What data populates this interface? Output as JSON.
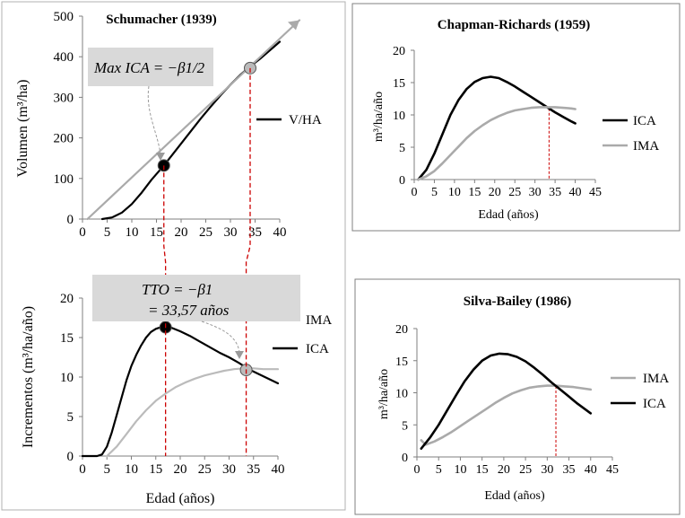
{
  "chart_data": [
    {
      "id": "schumacher_vol",
      "type": "line",
      "title": "Schumacher (1939)",
      "xlabel": "",
      "ylabel": "Volumen (m³/ha)",
      "xlim": [
        0,
        40
      ],
      "ylim": [
        0,
        500
      ],
      "xticks": [
        0,
        5,
        10,
        15,
        20,
        25,
        30,
        35,
        40
      ],
      "yticks": [
        0,
        100,
        200,
        300,
        400,
        500
      ],
      "legend": {
        "position": "right",
        "entries": [
          "V/HA"
        ]
      },
      "series": [
        {
          "name": "V/HA",
          "color": "#000000",
          "x": [
            4,
            6,
            8,
            10,
            12,
            14,
            16.5,
            18,
            20,
            22,
            24,
            26,
            28,
            30,
            32,
            34,
            36,
            38,
            40
          ],
          "y": [
            0,
            4,
            16,
            37,
            65,
            97,
            132,
            155,
            186,
            217,
            248,
            277,
            305,
            331,
            355,
            376,
            395,
            416,
            437
          ]
        },
        {
          "name": "",
          "color": "#aaaaaa",
          "x": [
            1,
            44
          ],
          "y": [
            0,
            490
          ]
        }
      ],
      "annotations": {
        "text": "Max ICA = −β1/2",
        "points": [
          {
            "x": 16.5,
            "y": 132,
            "fill": "#000000"
          },
          {
            "x": 34,
            "y": 372,
            "fill": "#bbbbbb"
          }
        ],
        "dashed_verticals": [
          16.5,
          34
        ]
      }
    },
    {
      "id": "schumacher_inc",
      "type": "line",
      "title": "",
      "xlabel": "Edad (años)",
      "ylabel": "Incrementos (m³/ha/año)",
      "xlim": [
        0,
        40
      ],
      "ylim": [
        0,
        20
      ],
      "xticks": [
        0,
        5,
        10,
        15,
        20,
        25,
        30,
        35,
        40
      ],
      "yticks": [
        0,
        5,
        10,
        15,
        20
      ],
      "legend": {
        "position": "right",
        "entries": [
          "IMA",
          "ICA"
        ]
      },
      "series": [
        {
          "name": "ICA",
          "color": "#000000",
          "x": [
            0,
            3,
            4,
            5,
            6,
            7,
            8,
            9,
            10,
            11,
            12,
            13,
            14,
            15,
            16,
            17,
            18,
            20,
            22,
            24,
            26,
            28,
            30,
            32,
            34,
            36,
            38,
            40
          ],
          "y": [
            0,
            0,
            0.2,
            1.2,
            3.0,
            5.2,
            7.4,
            9.6,
            11.4,
            12.8,
            14.0,
            15.0,
            15.7,
            16.1,
            16.3,
            16.4,
            16.3,
            15.8,
            15.2,
            14.5,
            13.8,
            13.1,
            12.5,
            11.8,
            11.0,
            10.4,
            9.8,
            9.2
          ]
        },
        {
          "name": "IMA",
          "color": "#bbbbbb",
          "x": [
            5,
            7,
            9,
            11,
            13,
            15,
            17,
            19,
            21,
            23,
            25,
            27,
            29,
            31,
            33,
            35,
            37,
            40
          ],
          "y": [
            0,
            1.2,
            2.8,
            4.4,
            5.8,
            7.0,
            7.9,
            8.7,
            9.3,
            9.8,
            10.2,
            10.5,
            10.8,
            11.0,
            11.1,
            11.1,
            11.0,
            11.0
          ]
        }
      ],
      "annotations": {
        "text_line1": "TTO = −β1",
        "text_line2": "= 33,57 años",
        "points": [
          {
            "x": 17,
            "y": 16.3,
            "fill": "#000000"
          },
          {
            "x": 33.5,
            "y": 10.9,
            "fill": "#bbbbbb"
          }
        ],
        "dashed_verticals": [
          17,
          33.5
        ]
      }
    },
    {
      "id": "chapman",
      "type": "line",
      "title": "Chapman-Richards (1959)",
      "xlabel": "Edad (años)",
      "ylabel": "m³/ha/año",
      "xlim": [
        0,
        45
      ],
      "ylim": [
        0,
        20
      ],
      "xticks": [
        0,
        5,
        10,
        15,
        20,
        25,
        30,
        35,
        40,
        45
      ],
      "yticks": [
        0,
        5,
        10,
        15,
        20
      ],
      "legend": {
        "position": "right",
        "entries": [
          "ICA",
          "IMA"
        ]
      },
      "series": [
        {
          "name": "ICA",
          "color": "#000000",
          "x": [
            1,
            3,
            5,
            7,
            9,
            11,
            13,
            15,
            17,
            19,
            21,
            23,
            25,
            27,
            29,
            31,
            33,
            35,
            37,
            39,
            40
          ],
          "y": [
            0,
            1.5,
            4.0,
            7.0,
            10.0,
            12.3,
            14.0,
            15.1,
            15.7,
            15.9,
            15.7,
            15.1,
            14.4,
            13.6,
            12.8,
            12.0,
            11.2,
            10.4,
            9.7,
            9.0,
            8.7
          ]
        },
        {
          "name": "IMA",
          "color": "#aaaaaa",
          "x": [
            1,
            3,
            5,
            7,
            9,
            11,
            13,
            15,
            17,
            19,
            21,
            23,
            25,
            27,
            29,
            31,
            33,
            35,
            37,
            39,
            40
          ],
          "y": [
            0,
            0.5,
            1.3,
            2.5,
            3.8,
            5.1,
            6.4,
            7.5,
            8.4,
            9.2,
            9.8,
            10.3,
            10.7,
            10.9,
            11.1,
            11.2,
            11.2,
            11.2,
            11.1,
            11.0,
            10.9
          ]
        }
      ],
      "annotations": {
        "dashed_verticals": [
          33.5
        ]
      }
    },
    {
      "id": "silva",
      "type": "line",
      "title": "Silva-Bailey (1986)",
      "xlabel": "Edad (años)",
      "ylabel": "m³/ha/año",
      "xlim": [
        0,
        45
      ],
      "ylim": [
        0,
        20
      ],
      "xticks": [
        0,
        5,
        10,
        15,
        20,
        25,
        30,
        35,
        40,
        45
      ],
      "yticks": [
        0,
        5,
        10,
        15,
        20
      ],
      "legend": {
        "position": "right",
        "entries": [
          "IMA",
          "ICA"
        ]
      },
      "series": [
        {
          "name": "IMA",
          "color": "#aaaaaa",
          "x": [
            1,
            2,
            4,
            6,
            8,
            10,
            12,
            14,
            16,
            18,
            20,
            22,
            24,
            26,
            28,
            30,
            32,
            34,
            36,
            38,
            40
          ],
          "y": [
            2.6,
            1.9,
            2.4,
            3.1,
            3.9,
            4.8,
            5.7,
            6.6,
            7.5,
            8.4,
            9.2,
            9.9,
            10.4,
            10.8,
            11.0,
            11.1,
            11.1,
            11.0,
            10.9,
            10.7,
            10.5
          ]
        },
        {
          "name": "ICA",
          "color": "#000000",
          "x": [
            1,
            3,
            5,
            7,
            9,
            11,
            13,
            15,
            17,
            19,
            21,
            23,
            25,
            27,
            29,
            31,
            33,
            35,
            37,
            39,
            40
          ],
          "y": [
            1.3,
            3.0,
            5.0,
            7.3,
            9.6,
            11.8,
            13.6,
            15.0,
            15.8,
            16.1,
            16.0,
            15.6,
            14.9,
            13.9,
            12.8,
            11.6,
            10.5,
            9.4,
            8.3,
            7.3,
            6.8
          ]
        }
      ],
      "annotations": {
        "dashed_verticals": [
          32
        ]
      }
    }
  ]
}
